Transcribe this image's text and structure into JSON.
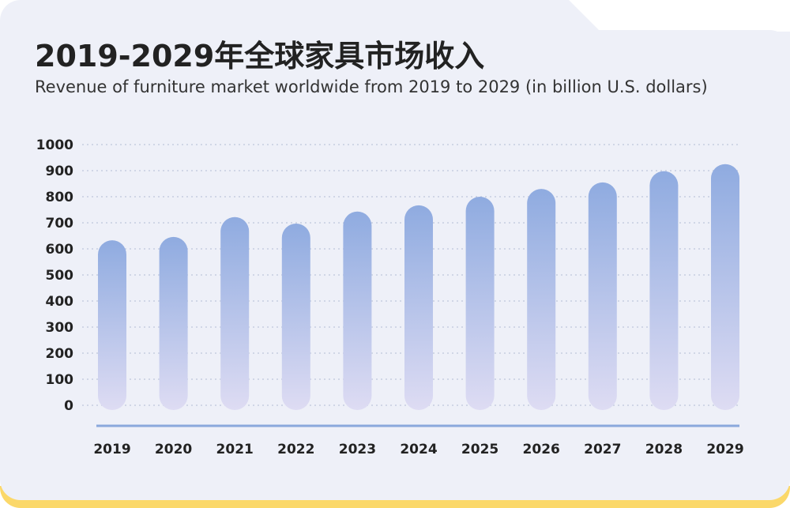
{
  "chart_data": {
    "type": "bar",
    "title": "2019-2029年全球家具市场收入",
    "subtitle": "Revenue of furniture market worldwide from 2019 to 2029 (in billion U.S. dollars)",
    "xlabel": "",
    "ylabel": "",
    "categories": [
      "2019",
      "2020",
      "2021",
      "2022",
      "2023",
      "2024",
      "2025",
      "2026",
      "2027",
      "2028",
      "2029"
    ],
    "values": [
      633,
      646,
      722,
      697,
      743,
      767,
      800,
      830,
      855,
      898,
      925
    ],
    "ylim": [
      0,
      1000
    ],
    "yticks": [
      "0",
      "100",
      "200",
      "300",
      "400",
      "500",
      "600",
      "700",
      "800",
      "900",
      "1000"
    ],
    "grid": true,
    "legend": "none",
    "colors": {
      "bar_top": "#8fabe0",
      "bar_bottom": "#dedcf3",
      "axis": "#8aa8dc",
      "grid": "#bfc7dc",
      "background": "#eef0f8",
      "accent_orange": "#f79420",
      "accent_yellow": "#fbd86a"
    }
  }
}
